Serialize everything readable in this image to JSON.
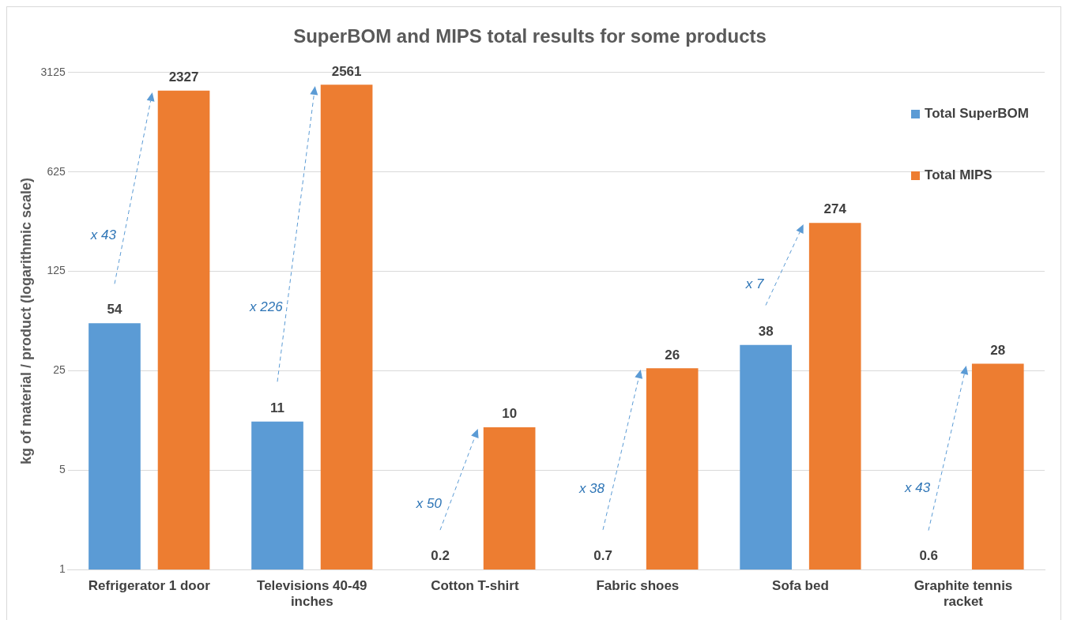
{
  "chart_data": {
    "type": "bar",
    "title": "SuperBOM and MIPS total results for some products",
    "ylabel": "kg of material / product (logarithmic scale)",
    "categories": [
      "Refrigerator 1 door",
      "Televisions 40-49 inches",
      "Cotton T-shirt",
      "Fabric shoes",
      "Sofa bed",
      "Graphite tennis racket"
    ],
    "series": [
      {
        "name": "Total SuperBOM",
        "color": "#5b9bd5",
        "values": [
          54,
          11,
          null,
          null,
          38,
          null
        ],
        "value_labels": [
          "54",
          "11",
          "0.2",
          "0.7",
          "38",
          "0.6"
        ]
      },
      {
        "name": "Total MIPS",
        "color": "#ed7d31",
        "values": [
          2327,
          2561,
          10,
          26,
          274,
          28
        ],
        "value_labels": [
          "2327",
          "2561",
          "10",
          "26",
          "274",
          "28"
        ]
      }
    ],
    "log": "y",
    "ylim": [
      1,
      3125
    ],
    "yticks": [
      1,
      5,
      25,
      125,
      625,
      3125
    ],
    "grid": "y",
    "legend": "top right",
    "annotations": [
      "x 43",
      "x 226",
      "x 50",
      "x 38",
      "x 7",
      "x 43"
    ]
  }
}
